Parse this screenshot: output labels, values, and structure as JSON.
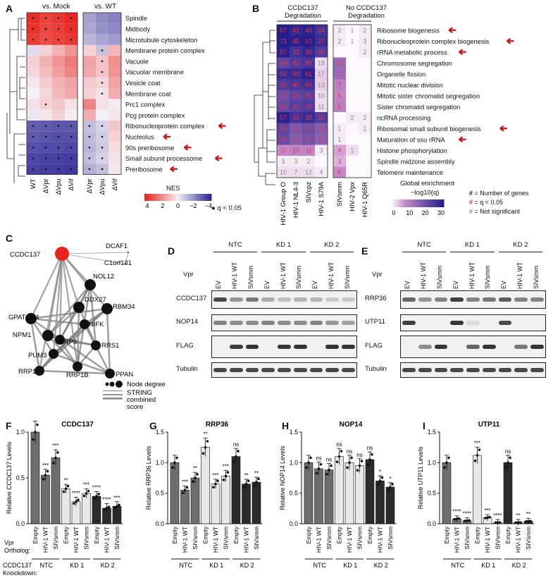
{
  "panel_labels": {
    "A": "A",
    "B": "B",
    "C": "C",
    "D": "D",
    "E": "E",
    "F": "F",
    "G": "G",
    "H": "H",
    "I": "I"
  },
  "panelA": {
    "group_labels": [
      "vs. Mock",
      "vs. WT"
    ],
    "rows": [
      "Spindle",
      "Midbody",
      "Microtubule cytoskeleton",
      "Membrane protein complex",
      "Vacuole",
      "Vacuolar membrane",
      "Vesicle coat",
      "Membrane coat",
      "Prc1 complex",
      "Pcg protein complex",
      "Ribonucleoprotein complex",
      "Nucleolus",
      "90s preribosome",
      "Small subunit processome",
      "Preribosome"
    ],
    "arrow_rows": [
      10,
      11,
      12,
      13,
      14
    ],
    "cols_mock": [
      "WT",
      "ΔVpr",
      "ΔVpu",
      "ΔVif"
    ],
    "cols_wt": [
      "ΔVpr",
      "ΔVpu",
      "ΔVif"
    ],
    "legend_title": "NES",
    "legend_ticks": [
      "4",
      "2",
      "0",
      "−2",
      "−4"
    ],
    "dot_legend": "q < 0.05",
    "nes_mock": [
      [
        3.8,
        3.4,
        3.6,
        3.9
      ],
      [
        3.7,
        3.3,
        3.5,
        3.8
      ],
      [
        3.5,
        3.2,
        3.4,
        3.6
      ],
      [
        -0.4,
        0.6,
        1.2,
        1.8
      ],
      [
        0.6,
        1.2,
        1.8,
        2.3
      ],
      [
        0.5,
        1.0,
        1.6,
        2.1
      ],
      [
        0.2,
        0.7,
        1.2,
        1.5
      ],
      [
        0.0,
        0.5,
        1.1,
        1.4
      ],
      [
        0.3,
        0.6,
        0.8,
        0.3
      ],
      [
        -0.2,
        0.2,
        0.6,
        0.1
      ],
      [
        -2.9,
        -3.0,
        -3.1,
        -3.1
      ],
      [
        -3.0,
        -3.1,
        -3.2,
        -3.2
      ],
      [
        -3.2,
        -3.3,
        -3.3,
        -3.4
      ],
      [
        -3.4,
        -3.5,
        -3.5,
        -3.6
      ],
      [
        -3.5,
        -3.6,
        -3.6,
        -3.7
      ]
    ],
    "nes_wt": [
      [
        -1.6,
        -2.0,
        -2.2
      ],
      [
        -1.5,
        -1.9,
        -2.1
      ],
      [
        -1.2,
        -1.5,
        -1.7
      ],
      [
        0.6,
        -0.9,
        1.1
      ],
      [
        1.5,
        0.9,
        1.9
      ],
      [
        1.4,
        0.9,
        1.8
      ],
      [
        0.7,
        0.5,
        1.5
      ],
      [
        0.6,
        0.3,
        1.3
      ],
      [
        2.1,
        0.3,
        0.1
      ],
      [
        1.3,
        0.0,
        0.2
      ],
      [
        -1.0,
        -0.6,
        0.8
      ],
      [
        -1.1,
        -0.7,
        0.6
      ],
      [
        -1.2,
        -0.8,
        0.4
      ],
      [
        -1.0,
        -0.6,
        0.3
      ],
      [
        -1.3,
        -1.0,
        0.2
      ]
    ]
  },
  "panelB": {
    "header1": "CCDC137 Degradation",
    "header2": "No CCDC137 Degradation",
    "cols1": [
      "HIV-1 Group O",
      "HIV-1 NL4-3",
      "SIVcpz",
      "HIV-1 S79A"
    ],
    "cols2": [
      "SIVsmm",
      "HIV-2 Vpx",
      "HIV-1 Q65R"
    ],
    "rows": [
      "Ribosome biogenesis",
      "Ribonucleoprotein complex biogenesis",
      "rRNA metabolic process",
      "Chromosome segregation",
      "Organelle fission",
      "Mitotic nuclear division",
      "Mitotic sister chromatid segregation",
      "Sister chromatid segregation",
      "ncRNA processing",
      "Ribosomal small subunit biogenesis",
      "Maturation of ssu rRNA",
      "Histone phosphorylation",
      "Spindle midzone assembly",
      "Telomere maintenance"
    ],
    "arrow_rows": [
      0,
      1,
      2,
      9,
      10
    ],
    "counts1": [
      [
        "67",
        "41",
        "45",
        "34"
      ],
      [
        "73",
        "45",
        "52",
        "37"
      ],
      [
        "57",
        "31",
        "39",
        "26"
      ],
      [
        "43",
        "43",
        "45",
        "18"
      ],
      [
        "52",
        "49",
        "61",
        "17"
      ],
      [
        "39",
        "40",
        "40",
        "13"
      ],
      [
        "27",
        "30",
        "30",
        "10"
      ],
      [
        "28",
        "32",
        "33",
        "11"
      ],
      [
        "57",
        "31",
        "38",
        "26"
      ],
      [
        "24",
        "18",
        "19",
        "13"
      ],
      [
        "20",
        "16",
        "18",
        "12"
      ],
      [
        "10",
        "10",
        "11",
        "3"
      ],
      [
        "3",
        "3",
        "2",
        ""
      ],
      [
        "10",
        "7",
        "12",
        "4"
      ]
    ],
    "enrich1": [
      [
        30,
        28,
        29,
        26
      ],
      [
        30,
        29,
        30,
        27
      ],
      [
        29,
        26,
        28,
        24
      ],
      [
        22,
        24,
        25,
        2
      ],
      [
        27,
        27,
        29,
        3
      ],
      [
        24,
        25,
        26,
        3
      ],
      [
        20,
        22,
        23,
        2
      ],
      [
        21,
        23,
        24,
        2
      ],
      [
        29,
        26,
        27,
        24
      ],
      [
        22,
        18,
        20,
        17
      ],
      [
        21,
        17,
        19,
        16
      ],
      [
        8,
        9,
        9,
        1
      ],
      [
        1,
        1,
        1,
        0
      ],
      [
        2,
        2,
        2,
        1
      ]
    ],
    "counts2": [
      [
        "2",
        "1",
        "2"
      ],
      [
        "2",
        "1",
        "3"
      ],
      [
        "",
        "",
        "2"
      ],
      [
        "11",
        "",
        ""
      ],
      [
        "12",
        "",
        ""
      ],
      [
        "7",
        "",
        ""
      ],
      [
        "5",
        "",
        ""
      ],
      [
        "6",
        "",
        ""
      ],
      [
        "",
        "2",
        "2"
      ],
      [
        "1",
        "",
        "1"
      ],
      [
        "1",
        "",
        ""
      ],
      [
        "4",
        "1",
        ""
      ],
      [
        "3",
        "",
        ""
      ],
      [
        "6",
        "",
        ""
      ]
    ],
    "enrich2": [
      [
        1,
        0,
        1
      ],
      [
        1,
        0,
        1
      ],
      [
        0,
        0,
        1
      ],
      [
        14,
        0,
        0
      ],
      [
        14,
        0,
        0
      ],
      [
        10,
        0,
        0
      ],
      [
        9,
        0,
        0
      ],
      [
        10,
        0,
        0
      ],
      [
        0,
        1,
        1
      ],
      [
        1,
        0,
        1
      ],
      [
        1,
        0,
        0
      ],
      [
        6,
        2,
        0
      ],
      [
        5,
        0,
        0
      ],
      [
        8,
        0,
        0
      ]
    ],
    "legend_title1": "Global enrichment",
    "legend_title2": "−log10(q)",
    "legend_ticks": [
      "0",
      "10",
      "20",
      "30"
    ],
    "key_lines": [
      {
        "sym": "#",
        "color": "#111111",
        "text": "= Number of genes"
      },
      {
        "sym": "#",
        "color": "#d7263d",
        "text": "= q < 0.05"
      },
      {
        "sym": "#",
        "color": "#888888",
        "text": "= Not significant"
      }
    ]
  },
  "panelC": {
    "nodes": [
      {
        "label": "CCDC137"
      },
      {
        "label": "DCAF1"
      },
      {
        "label": "C1orf131"
      },
      {
        "label": "NOL12"
      },
      {
        "label": "GPATCH4"
      },
      {
        "label": "DDX27"
      },
      {
        "label": "RBM34"
      },
      {
        "label": "NPM1"
      },
      {
        "label": "NIFK"
      },
      {
        "label": "RRP8"
      },
      {
        "label": "PUM3"
      },
      {
        "label": "RRS1"
      },
      {
        "label": "RRP1"
      },
      {
        "label": "RRP1B"
      },
      {
        "label": "PPAN"
      }
    ],
    "legend_node": "Node degree",
    "legend_edge1": "STRING",
    "legend_edge2": "combined",
    "legend_edge3": "score"
  },
  "panelD": {
    "groups": [
      "NTC",
      "KD 1",
      "KD 2"
    ],
    "vpr_label": "Vpr",
    "lanes": [
      "EV",
      "HIV-1 WT",
      "SIVsmm",
      "EV",
      "HIV-1 WT",
      "SIVsmm",
      "EV",
      "HIV-1 WT",
      "SIVsmm"
    ],
    "blots": [
      "CCDC137",
      "NOP14",
      "FLAG",
      "Tubulin"
    ]
  },
  "panelE": {
    "groups": [
      "NTC",
      "KD 1",
      "KD 2"
    ],
    "vpr_label": "Vpr",
    "lanes": [
      "EV",
      "HIV-1 WT",
      "SIVsmm",
      "EV",
      "HIV-1 WT",
      "SIVsmm",
      "EV",
      "HIV-1 WT",
      "SIVsmm"
    ],
    "blots": [
      "RRP36",
      "UTP11",
      "FLAG",
      "Tubulin"
    ]
  },
  "bar_footer": {
    "ortholog_label": "Vpr Ortholog:",
    "knockdown_label": "CCDC137 Knockdown:",
    "groups": [
      "NTC",
      "KD 1",
      "KD 2"
    ]
  },
  "chart_data": [
    {
      "type": "bar",
      "title": "CCDC137",
      "ylabel": "Relative CCDC137 Levels",
      "ylim": [
        0,
        1.0
      ],
      "yticks": [
        "0.0",
        "0.5",
        "1.0"
      ],
      "categories": [
        "Empty",
        "HIV-1 WT",
        "SIVsmm",
        "Empty",
        "HIV-1 WT",
        "SIVsmm",
        "Empty",
        "HIV-1 WT",
        "SIVsmm"
      ],
      "values": [
        1.0,
        0.53,
        0.72,
        0.38,
        0.24,
        0.33,
        0.3,
        0.17,
        0.19
      ],
      "sig": [
        "",
        "***",
        "***",
        "**",
        "****",
        "***",
        "****",
        "****",
        "***"
      ]
    },
    {
      "type": "bar",
      "title": "RRP36",
      "ylabel": "Relative RRP36 Levels",
      "ylim": [
        0,
        1.5
      ],
      "yticks": [
        "0.0",
        "0.5",
        "1.0",
        "1.5"
      ],
      "categories": [
        "Empty",
        "HIV-1 WT",
        "SIVsmm",
        "Empty",
        "HIV-1 WT",
        "SIVsmm",
        "Empty",
        "HIV-1 WT",
        "SIVsmm"
      ],
      "values": [
        1.0,
        0.55,
        0.75,
        1.25,
        0.65,
        0.78,
        1.1,
        0.65,
        0.68
      ],
      "sig": [
        "",
        "***",
        "**",
        "**",
        "***",
        "***",
        "ns",
        "**",
        "**"
      ]
    },
    {
      "type": "bar",
      "title": "NOP14",
      "ylabel": "Relative NOP14 Levels",
      "ylim": [
        0,
        1.5
      ],
      "yticks": [
        "0.0",
        "0.5",
        "1.0",
        "1.5"
      ],
      "categories": [
        "Empty",
        "HIV-1 WT",
        "SIVsmm",
        "Empty",
        "HIV-1 WT",
        "SIVsmm",
        "Empty",
        "HIV-1 WT",
        "SIVsmm"
      ],
      "values": [
        1.0,
        0.9,
        0.88,
        1.1,
        1.0,
        0.95,
        1.05,
        0.7,
        0.6
      ],
      "sig": [
        "",
        "ns",
        "ns",
        "ns",
        "ns",
        "ns",
        "ns",
        "*",
        "*"
      ]
    },
    {
      "type": "bar",
      "title": "UTP11",
      "ylabel": "Relative UTP11 Levels",
      "ylim": [
        0,
        1.5
      ],
      "yticks": [
        "0.0",
        "0.5",
        "1.0",
        "1.5"
      ],
      "categories": [
        "Empty",
        "HIV-1 WT",
        "SIVsmm",
        "Empty",
        "HIV-1 WT",
        "SIVsmm",
        "Empty",
        "HIV-1 WT",
        "SIVsmm"
      ],
      "values": [
        1.0,
        0.08,
        0.05,
        1.12,
        0.1,
        0.02,
        1.0,
        0.02,
        0.04
      ],
      "sig": [
        "",
        "****",
        "****",
        "***",
        "***",
        "****",
        "ns",
        "**",
        "**"
      ]
    }
  ],
  "colors": {
    "red": "#e8231d",
    "navy": "#1f1f8a",
    "arrow": "#c0181b"
  }
}
